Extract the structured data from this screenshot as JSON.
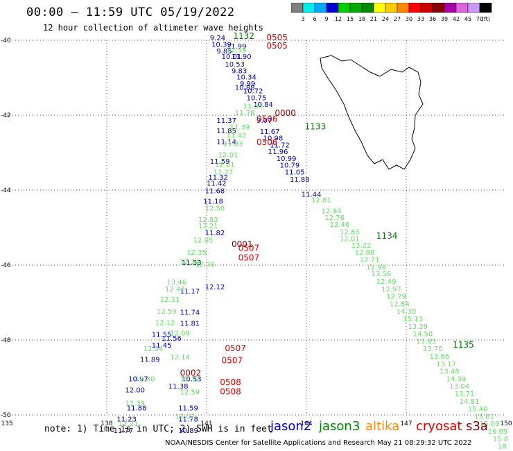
{
  "header": {
    "title": "00:00 – 11:59 UTC 05/19/2022",
    "subtitle": "12 hour collection of altimeter wave heights"
  },
  "footer": {
    "note": "note: 1) Time is in UTC; 2) SWH is in feet",
    "credit": "NOAA/NESDIS Center for Satellite Applications and Research   May 21 08:29:32 UTC 2022",
    "satellites": [
      {
        "name": "jason2",
        "color": "#0000cc"
      },
      {
        "name": "jason3",
        "color": "#008800"
      },
      {
        "name": "altika",
        "color": "#ff8800"
      },
      {
        "name": "cryosat",
        "color": "#dd0000"
      },
      {
        "name": "s3a",
        "color": "#880000"
      }
    ]
  },
  "colorbar": {
    "unit": "(ft)",
    "labels": [
      "3",
      "6",
      "9",
      "12",
      "15",
      "18",
      "21",
      "24",
      "27",
      "30",
      "33",
      "36",
      "39",
      "42",
      "45",
      "70"
    ],
    "colors": [
      "#808080",
      "#00eeee",
      "#00aaff",
      "#0000cc",
      "#00cc00",
      "#00aa00",
      "#008800",
      "#ffff00",
      "#ffcc00",
      "#ff8800",
      "#ff0000",
      "#cc0000",
      "#880000",
      "#aa00aa",
      "#dd66dd",
      "#cc99ff",
      "#000000"
    ]
  },
  "chart_data": {
    "type": "scatter",
    "title": "00:00 – 11:59 UTC 05/19/2022",
    "xlim": [
      135,
      150
    ],
    "ylim": [
      -50,
      -40
    ],
    "x_ticks": [
      135,
      138,
      141,
      144,
      147,
      150
    ],
    "y_ticks": [
      -40,
      -42,
      -44,
      -46,
      -48,
      -50
    ],
    "grid": true,
    "colors": {
      "dark_blue": "#0000aa",
      "light_green": "#66dd66",
      "dark_green": "#007700",
      "red": "#dd0000",
      "dark_red": "#880000"
    },
    "series": [
      {
        "name": "jason2",
        "color": "dark_blue",
        "points": [
          {
            "x": 141.1,
            "y": -40.0,
            "v": "9.24"
          },
          {
            "x": 141.15,
            "y": -40.18,
            "v": "10.39"
          },
          {
            "x": 141.3,
            "y": -40.35,
            "v": "9.85"
          },
          {
            "x": 141.45,
            "y": -40.5,
            "v": "10.01"
          },
          {
            "x": 141.55,
            "y": -40.7,
            "v": "10.53"
          },
          {
            "x": 141.75,
            "y": -40.88,
            "v": "9.83"
          },
          {
            "x": 141.9,
            "y": -41.05,
            "v": "10.34"
          },
          {
            "x": 142.0,
            "y": -41.22,
            "v": "9.99"
          },
          {
            "x": 142.1,
            "y": -41.42,
            "v": "10.72"
          },
          {
            "x": 142.2,
            "y": -41.6,
            "v": "10.75"
          },
          {
            "x": 142.4,
            "y": -41.78,
            "v": "10.84"
          },
          {
            "x": 142.5,
            "y": -42.2,
            "v": "9.07"
          },
          {
            "x": 142.6,
            "y": -42.5,
            "v": "11.67"
          },
          {
            "x": 142.7,
            "y": -42.68,
            "v": "10.98"
          },
          {
            "x": 142.9,
            "y": -42.86,
            "v": "11.72"
          },
          {
            "x": 142.85,
            "y": -43.04,
            "v": "11.96"
          },
          {
            "x": 143.1,
            "y": -43.22,
            "v": "10.99"
          },
          {
            "x": 143.2,
            "y": -43.4,
            "v": "10.79"
          },
          {
            "x": 143.35,
            "y": -43.58,
            "v": "11.05"
          },
          {
            "x": 143.5,
            "y": -43.78,
            "v": "11.88"
          },
          {
            "x": 143.85,
            "y": -44.18,
            "v": "11.44"
          },
          {
            "x": 141.3,
            "y": -42.2,
            "v": "11.37"
          },
          {
            "x": 141.3,
            "y": -42.48,
            "v": "11.85"
          },
          {
            "x": 141.3,
            "y": -42.78,
            "v": "11.14"
          },
          {
            "x": 141.1,
            "y": -43.3,
            "v": "11.59"
          },
          {
            "x": 141.05,
            "y": -43.72,
            "v": "11.32"
          },
          {
            "x": 141.0,
            "y": -43.88,
            "v": "11.42"
          },
          {
            "x": 140.95,
            "y": -44.08,
            "v": "11.68"
          },
          {
            "x": 140.9,
            "y": -44.36,
            "v": "11.18"
          },
          {
            "x": 140.95,
            "y": -45.2,
            "v": "11.82"
          },
          {
            "x": 140.25,
            "y": -46.0,
            "v": "11.53"
          },
          {
            "x": 140.2,
            "y": -46.76,
            "v": "11.17"
          },
          {
            "x": 140.2,
            "y": -47.32,
            "v": "11.74"
          },
          {
            "x": 140.2,
            "y": -47.62,
            "v": "11.81"
          },
          {
            "x": 139.35,
            "y": -47.92,
            "v": "11.55"
          },
          {
            "x": 139.35,
            "y": -48.2,
            "v": "11.45"
          },
          {
            "x": 139.65,
            "y": -48.02,
            "v": "11.56"
          },
          {
            "x": 139.0,
            "y": -48.58,
            "v": "11.89"
          },
          {
            "x": 138.65,
            "y": -49.1,
            "v": "10.97"
          },
          {
            "x": 138.55,
            "y": -49.4,
            "v": "12.00"
          },
          {
            "x": 139.85,
            "y": -49.3,
            "v": "11.38"
          },
          {
            "x": 140.25,
            "y": -49.1,
            "v": "10.53"
          },
          {
            "x": 138.6,
            "y": -49.88,
            "v": "11.88"
          },
          {
            "x": 140.15,
            "y": -49.88,
            "v": "11.59"
          },
          {
            "x": 138.3,
            "y": -50.18,
            "v": "11.23"
          },
          {
            "x": 140.15,
            "y": -50.18,
            "v": "11.78"
          },
          {
            "x": 138.2,
            "y": -50.48,
            "v": "11.77"
          },
          {
            "x": 140.15,
            "y": -50.48,
            "v": "10.89"
          },
          {
            "x": 141.6,
            "y": -40.22,
            "v": "11.99"
          },
          {
            "x": 141.75,
            "y": -40.5,
            "v": "11.90"
          },
          {
            "x": 141.85,
            "y": -41.32,
            "v": "10.88"
          },
          {
            "x": 140.95,
            "y": -46.65,
            "v": "12.12"
          }
        ]
      },
      {
        "name": "jason3",
        "color": "light_green",
        "points": [
          {
            "x": 141.6,
            "y": -40.32,
            "v": "12.59"
          },
          {
            "x": 142.1,
            "y": -41.82,
            "v": "11.57"
          },
          {
            "x": 141.85,
            "y": -42.0,
            "v": "11.78"
          },
          {
            "x": 141.7,
            "y": -42.38,
            "v": "11.39"
          },
          {
            "x": 141.6,
            "y": -42.6,
            "v": "11.42"
          },
          {
            "x": 141.5,
            "y": -42.82,
            "v": "11.83"
          },
          {
            "x": 141.35,
            "y": -43.12,
            "v": "12.01"
          },
          {
            "x": 141.25,
            "y": -43.38,
            "v": "12.21"
          },
          {
            "x": 141.2,
            "y": -43.58,
            "v": "12.27"
          },
          {
            "x": 140.95,
            "y": -44.55,
            "v": "12.50"
          },
          {
            "x": 140.75,
            "y": -44.85,
            "v": "12.83"
          },
          {
            "x": 140.75,
            "y": -45.02,
            "v": "12.21"
          },
          {
            "x": 140.6,
            "y": -45.4,
            "v": "12.05"
          },
          {
            "x": 140.4,
            "y": -45.72,
            "v": "12.35"
          },
          {
            "x": 140.2,
            "y": -45.97,
            "v": "12.24"
          },
          {
            "x": 140.65,
            "y": -46.05,
            "v": "12.76"
          },
          {
            "x": 139.8,
            "y": -46.52,
            "v": "13.46"
          },
          {
            "x": 139.75,
            "y": -46.7,
            "v": "12.42"
          },
          {
            "x": 139.6,
            "y": -46.98,
            "v": "12.11"
          },
          {
            "x": 139.5,
            "y": -47.3,
            "v": "12.59"
          },
          {
            "x": 139.45,
            "y": -47.6,
            "v": "12.12"
          },
          {
            "x": 139.9,
            "y": -47.88,
            "v": "12.09"
          },
          {
            "x": 139.1,
            "y": -48.3,
            "v": "12.34"
          },
          {
            "x": 139.9,
            "y": -48.52,
            "v": "12.14"
          },
          {
            "x": 138.85,
            "y": -49.1,
            "v": "12.30"
          },
          {
            "x": 140.2,
            "y": -49.1,
            "v": "12.12"
          },
          {
            "x": 140.2,
            "y": -49.45,
            "v": "12.59"
          },
          {
            "x": 138.55,
            "y": -49.75,
            "v": "12.39"
          },
          {
            "x": 140.05,
            "y": -50.1,
            "v": "12.07"
          },
          {
            "x": 138.35,
            "y": -50.3,
            "v": "12.21"
          },
          {
            "x": 144.15,
            "y": -44.32,
            "v": "12.81"
          },
          {
            "x": 144.45,
            "y": -44.62,
            "v": "12.94"
          },
          {
            "x": 144.55,
            "y": -44.8,
            "v": "12.76"
          },
          {
            "x": 144.7,
            "y": -44.98,
            "v": "12.46"
          },
          {
            "x": 145.0,
            "y": -45.18,
            "v": "12.83"
          },
          {
            "x": 145.0,
            "y": -45.36,
            "v": "12.01"
          },
          {
            "x": 145.35,
            "y": -45.54,
            "v": "13.22"
          },
          {
            "x": 145.45,
            "y": -45.72,
            "v": "12.88"
          },
          {
            "x": 145.6,
            "y": -45.92,
            "v": "12.71"
          },
          {
            "x": 145.8,
            "y": -46.12,
            "v": "12.98"
          },
          {
            "x": 145.95,
            "y": -46.3,
            "v": "13.56"
          },
          {
            "x": 146.1,
            "y": -46.5,
            "v": "12.49"
          },
          {
            "x": 146.25,
            "y": -46.7,
            "v": "12.97"
          },
          {
            "x": 146.4,
            "y": -46.9,
            "v": "12.79"
          },
          {
            "x": 146.5,
            "y": -47.1,
            "v": "12.84"
          },
          {
            "x": 146.7,
            "y": -47.3,
            "v": "14.30"
          },
          {
            "x": 146.9,
            "y": -47.5,
            "v": "15.13"
          },
          {
            "x": 147.05,
            "y": -47.7,
            "v": "13.29"
          },
          {
            "x": 147.2,
            "y": -47.9,
            "v": "14.50"
          },
          {
            "x": 147.3,
            "y": -48.1,
            "v": "13.95"
          },
          {
            "x": 147.5,
            "y": -48.3,
            "v": "13.70"
          },
          {
            "x": 147.7,
            "y": -48.5,
            "v": "13.66"
          },
          {
            "x": 147.9,
            "y": -48.7,
            "v": "13.17"
          },
          {
            "x": 148.0,
            "y": -48.9,
            "v": "13.48"
          },
          {
            "x": 148.2,
            "y": -49.1,
            "v": "14.39"
          },
          {
            "x": 148.3,
            "y": -49.3,
            "v": "13.04"
          },
          {
            "x": 148.45,
            "y": -49.5,
            "v": "13.71"
          },
          {
            "x": 148.6,
            "y": -49.7,
            "v": "14.81"
          },
          {
            "x": 148.85,
            "y": -49.9,
            "v": "15.40"
          },
          {
            "x": 149.05,
            "y": -50.1,
            "v": "15.81"
          },
          {
            "x": 149.2,
            "y": -50.3,
            "v": "15.09"
          },
          {
            "x": 149.45,
            "y": -50.5,
            "v": "16.89"
          },
          {
            "x": 149.6,
            "y": -50.7,
            "v": "15.8"
          },
          {
            "x": 149.75,
            "y": -50.9,
            "v": "18"
          }
        ]
      }
    ],
    "pass_labels": [
      {
        "x": 141.8,
        "y": -39.96,
        "text": "1132",
        "color": "dark_green"
      },
      {
        "x": 143.95,
        "y": -42.38,
        "text": "1133",
        "color": "dark_green"
      },
      {
        "x": 146.1,
        "y": -45.3,
        "text": "1134",
        "color": "dark_green"
      },
      {
        "x": 148.4,
        "y": -48.2,
        "text": "1135",
        "color": "dark_green"
      },
      {
        "x": 142.8,
        "y": -40.0,
        "text": "0505",
        "color": "red"
      },
      {
        "x": 142.8,
        "y": -40.22,
        "text": "0505",
        "color": "red"
      },
      {
        "x": 143.05,
        "y": -42.02,
        "text": "0000",
        "color": "dark_red"
      },
      {
        "x": 142.5,
        "y": -42.18,
        "text": "0506",
        "color": "red"
      },
      {
        "x": 142.5,
        "y": -42.8,
        "text": "0506",
        "color": "red"
      },
      {
        "x": 141.75,
        "y": -45.52,
        "text": "0001",
        "color": "dark_red"
      },
      {
        "x": 141.95,
        "y": -45.62,
        "text": "0507",
        "color": "red"
      },
      {
        "x": 141.95,
        "y": -45.88,
        "text": "0507",
        "color": "red"
      },
      {
        "x": 141.55,
        "y": -48.3,
        "text": "0507",
        "color": "red"
      },
      {
        "x": 141.45,
        "y": -48.62,
        "text": "0507",
        "color": "red"
      },
      {
        "x": 140.2,
        "y": -48.95,
        "text": "0002",
        "color": "dark_red"
      },
      {
        "x": 141.4,
        "y": -49.2,
        "text": "0508",
        "color": "red"
      },
      {
        "x": 141.4,
        "y": -49.45,
        "text": "0508",
        "color": "red"
      }
    ]
  }
}
